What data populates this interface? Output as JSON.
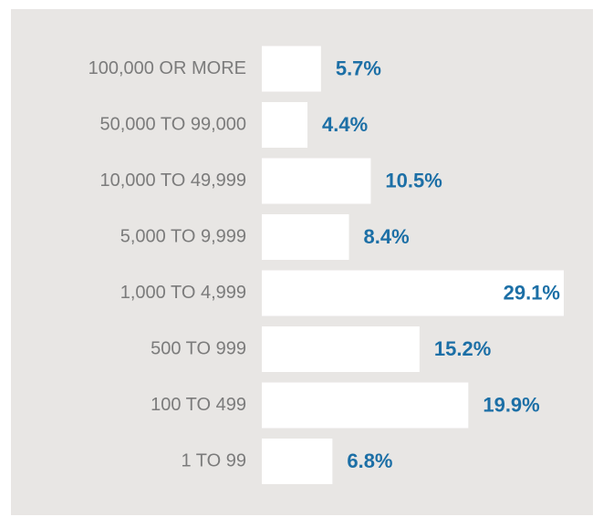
{
  "chart_data": {
    "type": "hbar",
    "categories": [
      "100,000 OR MORE",
      "50,000 TO 99,000",
      "10,000 TO 49,999",
      "5,000 TO 9,999",
      "1,000 TO 4,999",
      "500 TO 999",
      "100 TO 499",
      "1 TO 99"
    ],
    "values": [
      5.7,
      4.4,
      10.5,
      8.4,
      29.1,
      15.2,
      19.9,
      6.8
    ],
    "value_labels": [
      "5.7%",
      "4.4%",
      "10.5%",
      "8.4%",
      "29.1%",
      "15.2%",
      "19.9%",
      "6.8%"
    ],
    "color": "#ffffff",
    "label_color": "#1c6fa6"
  }
}
